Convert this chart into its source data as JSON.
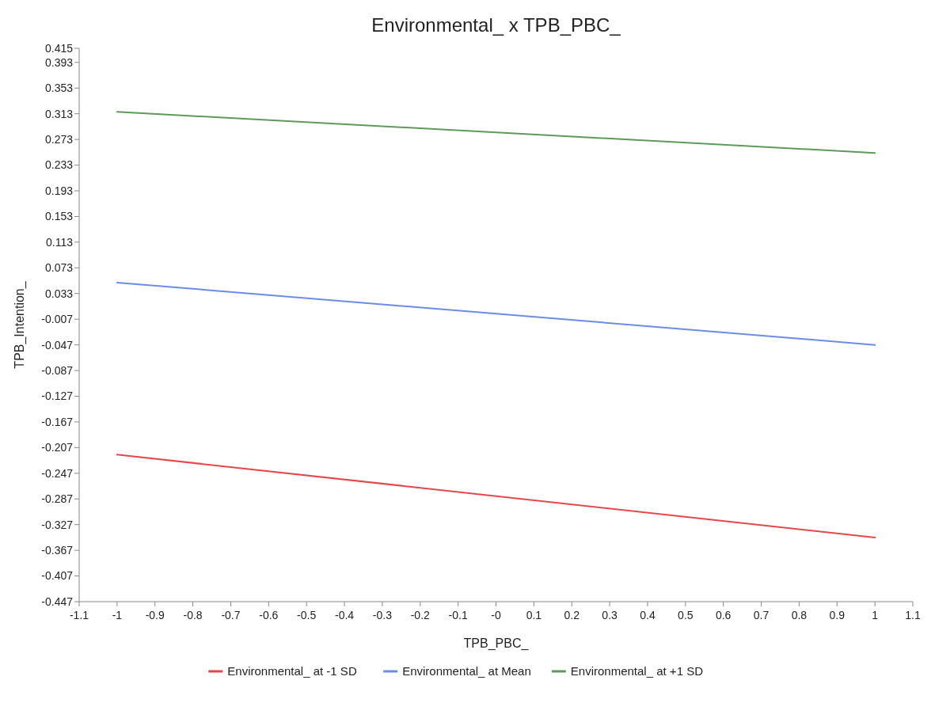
{
  "chart_data": {
    "type": "line",
    "title": "Environmental_ x TPB_PBC_",
    "xlabel": "TPB_PBC_",
    "ylabel": "TPB_Intention_",
    "x": [
      -1,
      1
    ],
    "series": [
      {
        "name": "Environmental_ at -1 SD",
        "color": "#e8474a",
        "values": [
          -0.218,
          -0.347
        ]
      },
      {
        "name": "Environmental_ at Mean",
        "color": "#6b8ce8",
        "values": [
          0.05,
          -0.047
        ]
      },
      {
        "name": "Environmental_ at +1 SD",
        "color": "#5e9a5a",
        "values": [
          0.316,
          0.252
        ]
      }
    ],
    "xlim": [
      -1.1,
      1.1
    ],
    "xticks": [
      -1.1,
      -1,
      -0.9,
      -0.8,
      -0.7,
      -0.6,
      -0.5,
      -0.4,
      -0.3,
      -0.2,
      -0.1,
      {
        "value": 0,
        "label": "-0"
      },
      0.1,
      0.2,
      0.3,
      0.4,
      0.5,
      0.6,
      0.7,
      0.8,
      0.9,
      1,
      1.1
    ],
    "ylim": [
      -0.447,
      0.415
    ],
    "yticks": [
      0.415,
      0.393,
      0.353,
      0.313,
      0.273,
      0.233,
      0.193,
      0.153,
      0.113,
      0.073,
      0.033,
      -0.007,
      -0.047,
      -0.087,
      -0.127,
      -0.167,
      -0.207,
      -0.247,
      -0.287,
      -0.327,
      -0.367,
      -0.407,
      -0.447
    ],
    "grid": false,
    "legend": "bottom",
    "marker": "none",
    "line_style": "solid"
  }
}
